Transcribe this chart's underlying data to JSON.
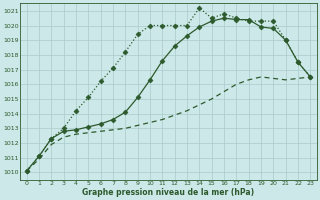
{
  "title": "Graphe pression niveau de la mer (hPa)",
  "bg_color": "#cce8e8",
  "grid_color": "#aacccc",
  "line_color": "#2d5a2d",
  "xlim": [
    -0.5,
    23.5
  ],
  "ylim": [
    1009.5,
    1021.5
  ],
  "xticks": [
    0,
    1,
    2,
    3,
    4,
    5,
    6,
    7,
    8,
    9,
    10,
    11,
    12,
    13,
    14,
    15,
    16,
    17,
    18,
    19,
    20,
    21,
    22,
    23
  ],
  "yticks": [
    1010,
    1011,
    1012,
    1013,
    1014,
    1015,
    1016,
    1017,
    1018,
    1019,
    1020,
    1021
  ],
  "series": [
    {
      "x": [
        0,
        1,
        2,
        3,
        4,
        5,
        6,
        7,
        8,
        9,
        10,
        11,
        12,
        13,
        14,
        15,
        16,
        17,
        18,
        19,
        20,
        21,
        22,
        23
      ],
      "y": [
        1010.1,
        1011.1,
        1012.3,
        1013.0,
        1014.2,
        1015.1,
        1016.2,
        1017.1,
        1018.2,
        1019.4,
        1020.0,
        1020.0,
        1020.0,
        1020.0,
        1021.2,
        1020.5,
        1020.8,
        1020.5,
        1020.3,
        1020.3,
        1020.3,
        1019.0,
        1017.5,
        1016.5
      ],
      "linestyle": "dotted",
      "marker": "D",
      "markersize": 2.5,
      "linewidth": 0.9
    },
    {
      "x": [
        0,
        1,
        2,
        3,
        4,
        5,
        6,
        7,
        8,
        9,
        10,
        11,
        12,
        13,
        14,
        15,
        16,
        17,
        18,
        19,
        20,
        21,
        22,
        23
      ],
      "y": [
        1010.1,
        1011.1,
        1012.3,
        1012.8,
        1012.9,
        1013.1,
        1013.3,
        1013.6,
        1014.1,
        1015.1,
        1016.3,
        1017.6,
        1018.6,
        1019.3,
        1019.9,
        1020.3,
        1020.5,
        1020.4,
        1020.4,
        1019.9,
        1019.8,
        1019.0,
        1017.5,
        1016.5
      ],
      "linestyle": "solid",
      "marker": "D",
      "markersize": 2.5,
      "linewidth": 0.9
    },
    {
      "x": [
        0,
        1,
        2,
        3,
        4,
        5,
        6,
        7,
        8,
        9,
        10,
        11,
        12,
        13,
        14,
        15,
        16,
        17,
        18,
        19,
        20,
        21,
        22,
        23
      ],
      "y": [
        1010.1,
        1010.9,
        1011.9,
        1012.4,
        1012.6,
        1012.7,
        1012.8,
        1012.9,
        1013.0,
        1013.2,
        1013.4,
        1013.6,
        1013.9,
        1014.2,
        1014.6,
        1015.0,
        1015.5,
        1016.0,
        1016.3,
        1016.5,
        1016.4,
        1016.3,
        1016.4,
        1016.5
      ],
      "linestyle": "dashed",
      "marker": null,
      "markersize": 0,
      "linewidth": 0.9
    }
  ]
}
